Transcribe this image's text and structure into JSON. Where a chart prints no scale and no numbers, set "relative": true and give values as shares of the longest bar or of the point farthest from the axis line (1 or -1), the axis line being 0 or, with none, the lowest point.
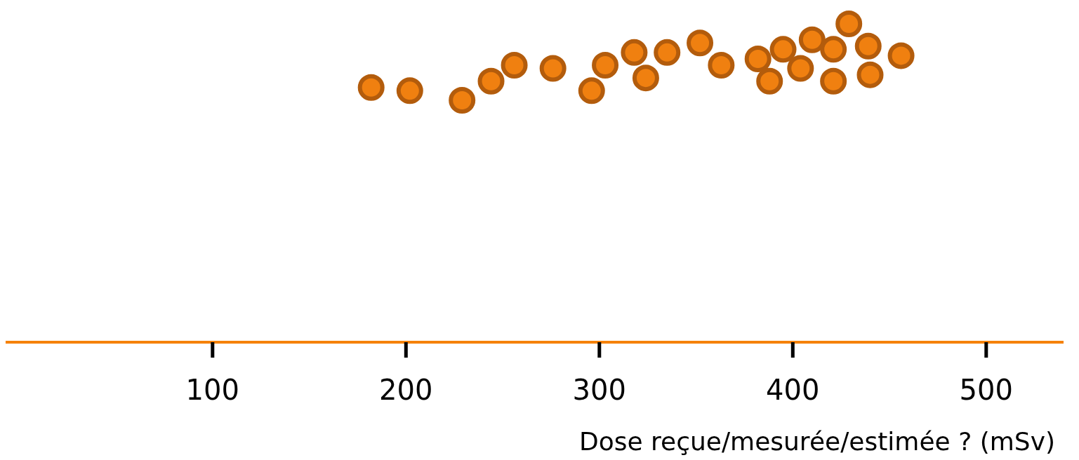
{
  "chart_data": {
    "type": "scatter",
    "xlabel": "Dose reçue/mesurée/estimée ? (mSv)",
    "relative": true,
    "marker": "circle",
    "grid": false,
    "tick_labels": "x",
    "xlim": [
      -7,
      540
    ],
    "xticks": [
      100,
      200,
      300,
      400,
      500
    ],
    "series": [
      {
        "color": "#f08010",
        "x": [
          182,
          202,
          229,
          244,
          256,
          276,
          296,
          303,
          318,
          324,
          335,
          352,
          363,
          382,
          388,
          395,
          404,
          410,
          421,
          421,
          429,
          439,
          440,
          456
        ],
        "values": [
          0.8,
          0.79,
          0.76,
          0.82,
          0.87,
          0.86,
          0.79,
          0.87,
          0.91,
          0.83,
          0.91,
          0.94,
          0.87,
          0.89,
          0.82,
          0.92,
          0.86,
          0.95,
          0.92,
          0.82,
          1,
          0.93,
          0.84,
          0.9
        ]
      }
    ]
  }
}
